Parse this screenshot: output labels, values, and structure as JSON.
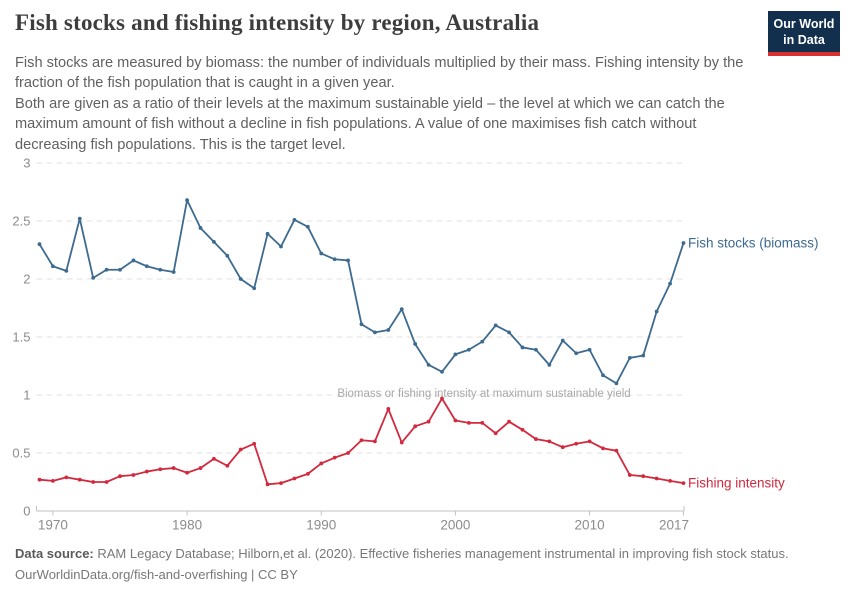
{
  "header": {
    "title": "Fish stocks and fishing intensity by region, Australia",
    "logo": {
      "line1": "Our World",
      "line2": "in Data"
    }
  },
  "subtitle": {
    "para1": "Fish stocks are measured by biomass: the number of individuals multiplied by their mass. Fishing intensity by the fraction of the fish population that is caught in a given year.",
    "para2": "Both are given as a ratio of their levels at the maximum sustainable yield – the level at which we can catch the maximum amount of fish without a decline in fish populations. A value of one maximises fish catch without decreasing fish populations. This is the target level."
  },
  "chart_data": {
    "type": "line",
    "title": "Fish stocks and fishing intensity by region, Australia",
    "xlabel": "",
    "ylabel": "",
    "ylim": [
      0,
      3
    ],
    "xlim": [
      1969,
      2017
    ],
    "grid": "horizontal-dashed",
    "legend_position": "end-of-line-labels",
    "yticks": [
      0,
      0.5,
      1,
      1.5,
      2,
      2.5,
      3
    ],
    "ytick_labels": [
      "0",
      "0.5",
      "1",
      "1.5",
      "2",
      "2.5",
      "3"
    ],
    "xticks": [
      1970,
      1980,
      1990,
      2000,
      2010,
      2017
    ],
    "annotation": {
      "text": "Biomass or fishing intensity at maximum sustainable yield",
      "value": 1
    },
    "x": [
      1969,
      1970,
      1971,
      1972,
      1973,
      1974,
      1975,
      1976,
      1977,
      1978,
      1979,
      1980,
      1981,
      1982,
      1983,
      1984,
      1985,
      1986,
      1987,
      1988,
      1989,
      1990,
      1991,
      1992,
      1993,
      1994,
      1995,
      1996,
      1997,
      1998,
      1999,
      2000,
      2001,
      2002,
      2003,
      2004,
      2005,
      2006,
      2007,
      2008,
      2009,
      2010,
      2011,
      2012,
      2013,
      2014,
      2015,
      2016,
      2017
    ],
    "series": [
      {
        "name": "Fish stocks (biomass)",
        "color": "#3d6a8f",
        "values": [
          2.3,
          2.11,
          2.07,
          2.52,
          2.01,
          2.08,
          2.08,
          2.16,
          2.11,
          2.08,
          2.06,
          2.68,
          2.44,
          2.32,
          2.2,
          2.0,
          1.92,
          2.39,
          2.28,
          2.51,
          2.45,
          2.22,
          2.17,
          2.16,
          1.61,
          1.54,
          1.56,
          1.74,
          1.44,
          1.26,
          1.2,
          1.35,
          1.39,
          1.46,
          1.6,
          1.54,
          1.41,
          1.39,
          1.26,
          1.47,
          1.36,
          1.39,
          1.17,
          1.1,
          1.32,
          1.34,
          1.72,
          1.96,
          2.31
        ]
      },
      {
        "name": "Fishing intensity",
        "color": "#d2293e",
        "values": [
          0.27,
          0.26,
          0.29,
          0.27,
          0.25,
          0.25,
          0.3,
          0.31,
          0.34,
          0.36,
          0.37,
          0.33,
          0.37,
          0.45,
          0.39,
          0.53,
          0.58,
          0.23,
          0.24,
          0.28,
          0.32,
          0.41,
          0.46,
          0.5,
          0.61,
          0.6,
          0.88,
          0.59,
          0.73,
          0.77,
          0.97,
          0.78,
          0.76,
          0.76,
          0.67,
          0.77,
          0.7,
          0.62,
          0.6,
          0.55,
          0.58,
          0.6,
          0.54,
          0.52,
          0.31,
          0.3,
          0.28,
          0.26,
          0.24
        ]
      }
    ]
  },
  "footer": {
    "source_label": "Data source:",
    "source_rest": " RAM Legacy Database; Hilborn,et al. (2020). Effective fisheries management instrumental in improving fish stock status.",
    "link_line": "OurWorldinData.org/fish-and-overfishing | CC BY"
  }
}
